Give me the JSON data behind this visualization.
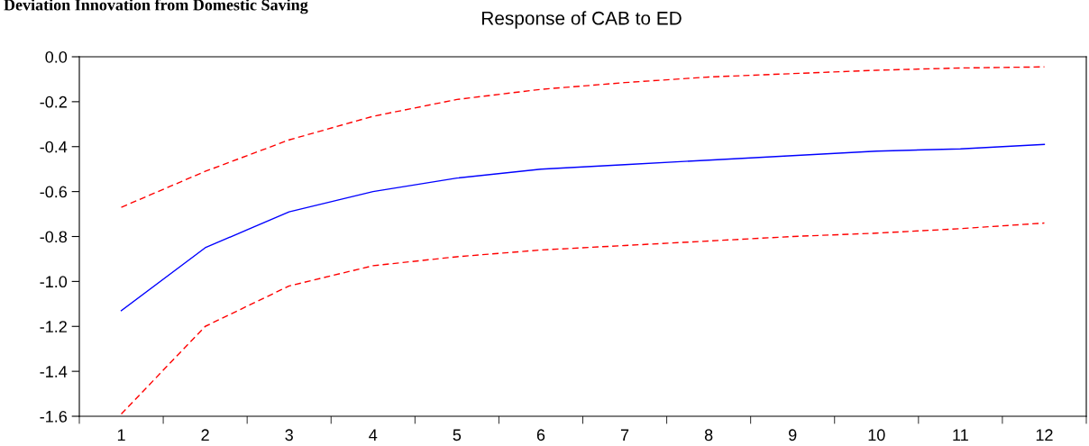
{
  "chart_data": {
    "type": "line",
    "title": "Response of CAB to ED",
    "annotations": [
      "Deviation Innovation from Domestic Saving"
    ],
    "categories": [
      "1",
      "2",
      "3",
      "4",
      "5",
      "6",
      "7",
      "8",
      "9",
      "10",
      "11",
      "12"
    ],
    "series": [
      {
        "color": "#0000ff",
        "line_style": "solid",
        "values": [
          -1.13,
          -0.85,
          -0.69,
          -0.6,
          -0.54,
          -0.5,
          -0.48,
          -0.46,
          -0.44,
          -0.42,
          -0.41,
          -0.39
        ]
      },
      {
        "color": "#ff0000",
        "line_style": "dashed",
        "values": [
          -0.67,
          -0.51,
          -0.37,
          -0.265,
          -0.19,
          -0.145,
          -0.115,
          -0.09,
          -0.075,
          -0.06,
          -0.05,
          -0.045
        ]
      },
      {
        "color": "#ff0000",
        "line_style": "dashed",
        "values": [
          -1.59,
          -1.2,
          -1.02,
          -0.93,
          -0.89,
          -0.86,
          -0.84,
          -0.82,
          -0.8,
          -0.785,
          -0.765,
          -0.74
        ]
      }
    ],
    "ylim": [
      -1.6,
      0.0
    ],
    "yticks": [
      {
        "value": 0.0,
        "label": "0.0"
      },
      -0.2,
      -0.4,
      -0.6,
      -0.8,
      {
        "value": -1.0,
        "label": "-1.0"
      },
      -1.2,
      -1.4,
      -1.6
    ],
    "grid": false,
    "legend": false
  }
}
